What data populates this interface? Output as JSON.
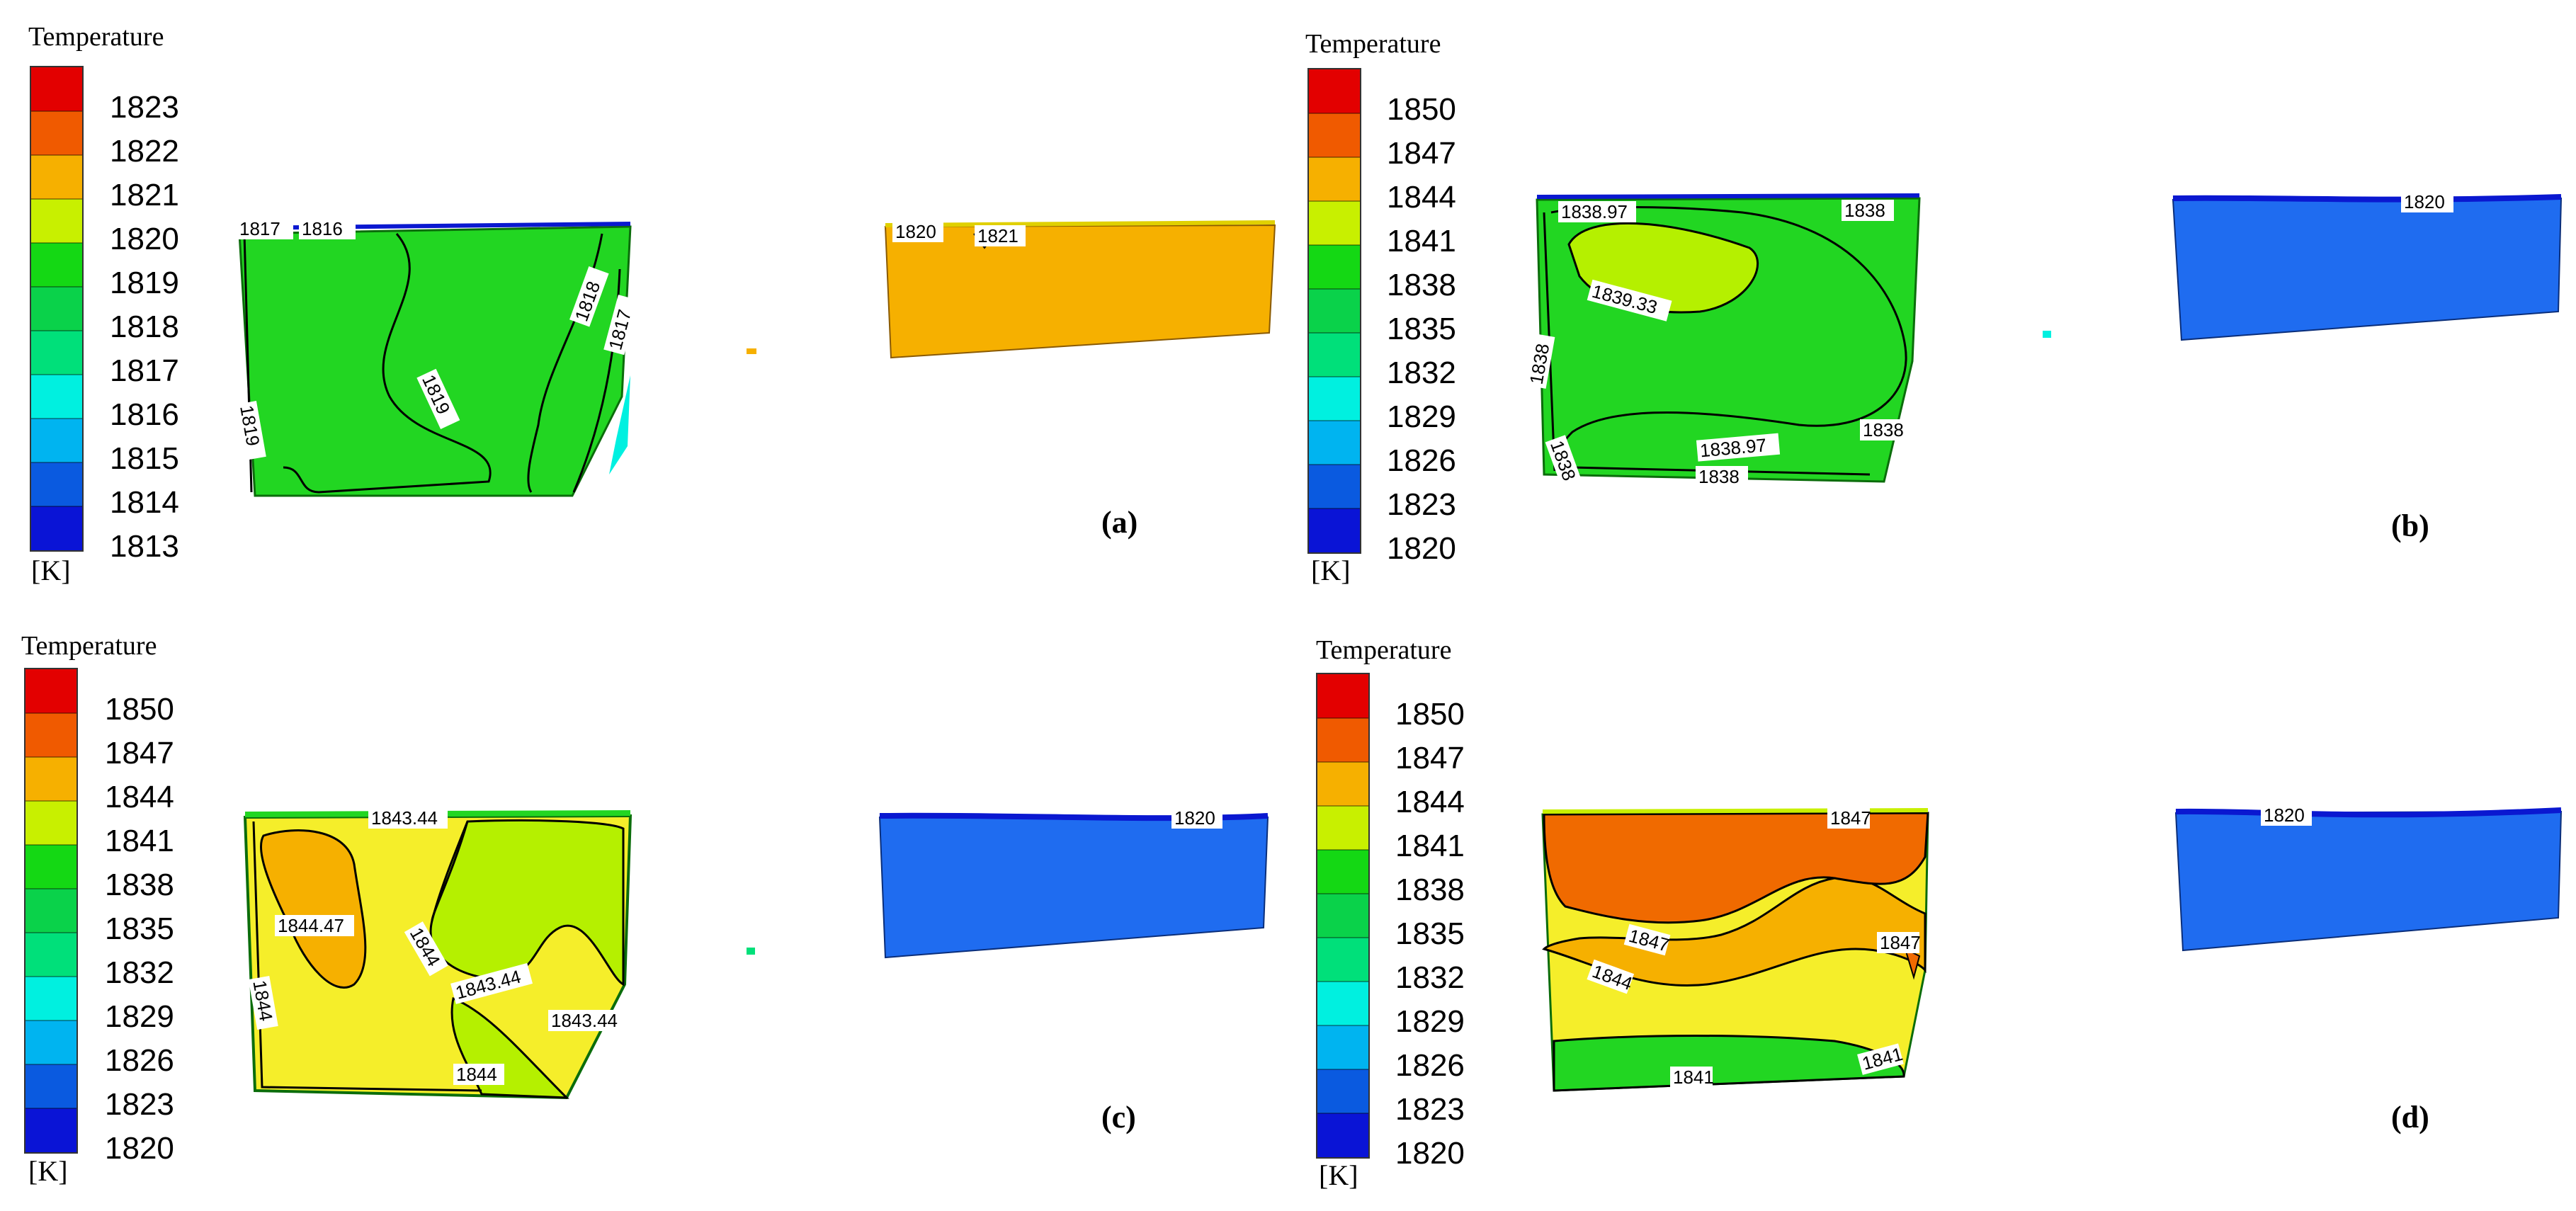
{
  "colors": {
    "legend_a": [
      "#e30000",
      "#f05a00",
      "#f6b000",
      "#c8f000",
      "#14d814",
      "#0ad24a",
      "#00e07a",
      "#00f0e0",
      "#00b4f0",
      "#0a5ae0",
      "#0a14d6"
    ],
    "legend_bcd": [
      "#e30000",
      "#f05a00",
      "#f6b000",
      "#c8f000",
      "#14d814",
      "#0ad24a",
      "#00e07a",
      "#00f0e0",
      "#00b4f0",
      "#0a5ae0",
      "#0a14d6"
    ],
    "green": "#22d622",
    "lime": "#b5f000",
    "yellow": "#f5ee2a",
    "orange": "#f6b000",
    "darkorange": "#f06a00",
    "blue": "#1f6cf0",
    "darkblue": "#0a18d0"
  },
  "panels": [
    {
      "tag": "(a)",
      "legend": {
        "title": "Temperature",
        "unit": "[K]",
        "labels": [
          "1823",
          "1822",
          "1821",
          "1820",
          "1819",
          "1818",
          "1817",
          "1816",
          "1815",
          "1814",
          "1813"
        ]
      },
      "contour_labels": [
        "1817",
        "1816",
        "1818",
        "1817",
        "1819",
        "1819",
        "1820",
        "1821"
      ]
    },
    {
      "tag": "(b)",
      "legend": {
        "title": "Temperature",
        "unit": "[K]",
        "labels": [
          "1850",
          "1847",
          "1844",
          "1841",
          "1838",
          "1835",
          "1832",
          "1829",
          "1826",
          "1823",
          "1820"
        ]
      },
      "contour_labels": [
        "1838.97",
        "1838",
        "1839.33",
        "1838",
        "1838.97",
        "1838",
        "1838",
        "1838",
        "1820"
      ]
    },
    {
      "tag": "(c)",
      "legend": {
        "title": "Temperature",
        "unit": "[K]",
        "labels": [
          "1850",
          "1847",
          "1844",
          "1841",
          "1838",
          "1835",
          "1832",
          "1829",
          "1826",
          "1823",
          "1820"
        ]
      },
      "contour_labels": [
        "1843.44",
        "1844.47",
        "1844",
        "1843.44",
        "1843.44",
        "1844",
        "1844",
        "1820"
      ]
    },
    {
      "tag": "(d)",
      "legend": {
        "title": "Temperature",
        "unit": "[K]",
        "labels": [
          "1850",
          "1847",
          "1844",
          "1841",
          "1838",
          "1835",
          "1832",
          "1829",
          "1826",
          "1823",
          "1820"
        ]
      },
      "contour_labels": [
        "1847",
        "1847",
        "1847",
        "1844",
        "1841",
        "1841",
        "1820"
      ]
    }
  ]
}
